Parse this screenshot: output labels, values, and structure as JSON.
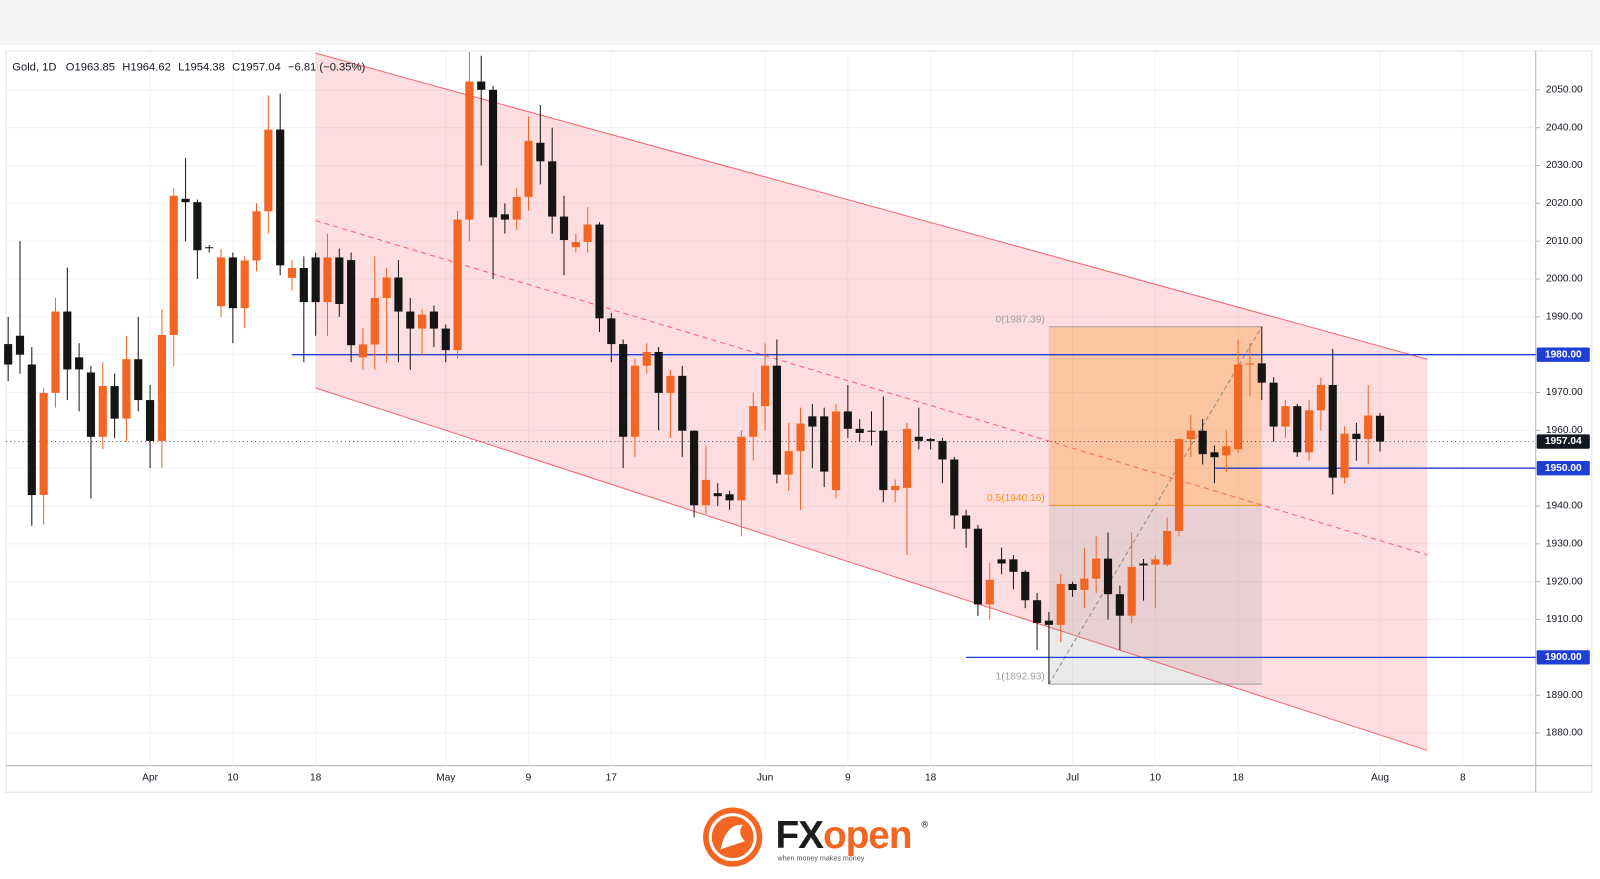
{
  "chart_data": {
    "type": "candlestick",
    "series": [
      {
        "name": "Gold, 1D",
        "up_color": "#f26522",
        "down_color": "#151515",
        "open": [
          1982.8,
          1985,
          1977.4,
          1942.9,
          1969.9,
          1991.4,
          1979.3,
          1975.3,
          1958.3,
          1971.7,
          1963.1,
          1978.8,
          1968,
          1957.2,
          1985.2,
          2021.2,
          2020.3,
          2008.4,
          1992.8,
          2005.7,
          1992.3,
          2004.9,
          2017.9,
          2039.5,
          2000.3,
          2002.9,
          2005.7,
          1993.9,
          2005.7,
          2005,
          1979.3,
          1982.7,
          1995,
          2000.4,
          1991.4,
          1986.9,
          1991.4,
          1986.9,
          1981.2,
          2015.7,
          2052.2,
          2050,
          2017.1,
          2015.7,
          2021.7,
          2036,
          2031.1,
          2016.5,
          2008.4,
          2009.8,
          2014.4,
          1989.6,
          1982.8,
          1958.3,
          1977.1,
          1980.7,
          1969.9,
          1974.4,
          1959.9,
          1940.2,
          1943.4,
          1943.1,
          1941.5,
          1958.3,
          1966.4,
          1977.1,
          1948.3,
          1954.5,
          1963.7,
          1963.7,
          1944.2,
          1965,
          1960.4,
          1959.9,
          1959.9,
          1944.2,
          1944.8,
          1958.3,
          1957.7,
          1957.2,
          1952.3,
          1937.5,
          1934,
          1914,
          1925.9,
          1925.9,
          1922.6,
          1915.1,
          1909.7,
          1908.6,
          1919.4,
          1917.8,
          1920.8,
          1926.1,
          1916.7,
          1911,
          1924.8,
          1924.5,
          1924.5,
          1933.4,
          1957.7,
          1959.9,
          1954.2,
          1953.4,
          1955,
          1977.4,
          1977.7,
          1972.6,
          1961,
          1966.4,
          1954.2,
          1965.3,
          1972,
          1947.5,
          1959.1,
          1957.7,
          1963.85,
          null,
          null,
          null,
          null,
          null,
          null,
          null
        ],
        "high": [
          1990,
          2010,
          1982,
          1971.2,
          1995,
          2003,
          1983,
          1977,
          1978,
          1975,
          1985,
          1990,
          1972,
          1992,
          2024,
          2032,
          2021,
          2009,
          2008,
          2007,
          2006,
          2020,
          2048.5,
          2049,
          2005,
          2006,
          2007,
          2012,
          2008,
          2007,
          1987,
          2006,
          2003,
          2005,
          1995,
          1992,
          1993,
          1988,
          2018,
          2060,
          2059,
          2051,
          2020,
          2024,
          2043,
          2046,
          2040,
          2022,
          2012,
          2019,
          2015,
          1991,
          1984,
          1979,
          1983,
          1982,
          1976,
          1977,
          1960,
          1956,
          1946,
          1944,
          1960,
          1970,
          1983,
          1984,
          1962,
          1966,
          1967,
          1966,
          1967,
          1972,
          1963,
          1965,
          1969,
          1947,
          1962,
          1966,
          1958,
          1958,
          1953,
          1939,
          1935,
          1925,
          1929,
          1927,
          1923,
          1917,
          1912,
          1922,
          1920,
          1929,
          1932,
          1933,
          1919,
          1933,
          1926,
          1927,
          1937,
          1958,
          1964,
          1963,
          1956,
          1960,
          1984,
          1983,
          1987.39,
          1974,
          1968,
          1967,
          1968,
          1974,
          1981.5,
          1961,
          1962,
          1972,
          1964.62,
          null,
          null,
          null,
          null,
          null,
          null,
          null
        ],
        "low": [
          1973,
          1975,
          1934.8,
          1935,
          1966,
          1968,
          1965,
          1942,
          1955,
          1958,
          1957,
          1965,
          1950,
          1950,
          1977,
          2010,
          2000,
          2007,
          1990,
          1983,
          1987,
          2002,
          2012,
          2001,
          1997,
          1978,
          1985,
          1985,
          1990,
          1978,
          1976,
          1976,
          1978,
          1978,
          1976,
          1980,
          1982,
          1978,
          1979,
          2010,
          2030,
          2000,
          2012,
          2013,
          2018,
          2025,
          2012,
          2001,
          2007,
          2007,
          1986,
          1978,
          1950,
          1953,
          1975,
          1960,
          1958,
          1953,
          1937,
          1938,
          1940,
          1939,
          1932,
          1952,
          1960,
          1946,
          1944,
          1939,
          1950,
          1945,
          1942,
          1958,
          1957,
          1956,
          1941,
          1941,
          1927,
          1955,
          1955,
          1946,
          1934,
          1929,
          1911,
          1910,
          1922,
          1918,
          1913,
          1902,
          1892.93,
          1904,
          1916,
          1913,
          1917,
          1910,
          1902,
          1909,
          1915,
          1913,
          1924,
          1932,
          1953,
          1951,
          1946,
          1949,
          1954,
          1969,
          1968,
          1957,
          1958,
          1953,
          1952,
          1960,
          1943,
          1946,
          1952,
          1951,
          1954.38,
          null,
          null,
          null,
          null,
          null,
          null,
          null
        ],
        "close": [
          1977.4,
          1980,
          1942.9,
          1969.9,
          1991.4,
          1976.1,
          1976.1,
          1958.3,
          1971.7,
          1963.1,
          1978.8,
          1968,
          1957.2,
          1985.2,
          2022,
          2020.3,
          2007.6,
          2008.2,
          2005.7,
          1992.3,
          2004.9,
          2017.9,
          2039.5,
          2003.6,
          2002.9,
          1993.9,
          1993.9,
          2005.7,
          1993.4,
          1982.5,
          1982.7,
          1995,
          2000.4,
          1991.4,
          1986.9,
          1990.6,
          1986.9,
          1981.2,
          2015.7,
          2052.2,
          2050,
          2016.3,
          2015.7,
          2021.7,
          2036.5,
          2031.1,
          2016.5,
          2010.3,
          2009.8,
          2014.4,
          1989.6,
          1982.8,
          1958.3,
          1977.1,
          1980.7,
          1969.9,
          1974.4,
          1959.9,
          1940.2,
          1946.9,
          1942.6,
          1941.5,
          1958.3,
          1966.4,
          1977.1,
          1948.3,
          1954.5,
          1961.8,
          1961,
          1949.1,
          1965,
          1960.4,
          1959.3,
          1959.8,
          1944.2,
          1945.3,
          1960.4,
          1957.2,
          1957.2,
          1952.3,
          1937.5,
          1934,
          1914,
          1920.5,
          1924.8,
          1922.6,
          1915.1,
          1909.1,
          1908.6,
          1919.4,
          1917.8,
          1920.8,
          1926.1,
          1916.7,
          1911,
          1923.9,
          1924.3,
          1925.9,
          1933.4,
          1957.7,
          1959.9,
          1953.7,
          1952.9,
          1955.8,
          1977.4,
          1977.7,
          1972.6,
          1961,
          1966.4,
          1954.2,
          1965.3,
          1972,
          1947.5,
          1959.1,
          1957.7,
          1963.9,
          1957.04,
          null,
          null,
          null,
          null,
          null,
          null,
          null
        ]
      }
    ],
    "header_values": [
      "O1963.85",
      "H1964.62",
      "L1954.38",
      "C1957.04",
      "−6.81 (−0.35%)"
    ],
    "categories": [
      null,
      null,
      null,
      null,
      null,
      null,
      null,
      null,
      null,
      null,
      null,
      null,
      "Apr",
      null,
      null,
      null,
      null,
      null,
      null,
      "10",
      null,
      null,
      null,
      null,
      null,
      null,
      "18",
      null,
      null,
      null,
      null,
      null,
      null,
      null,
      null,
      null,
      null,
      "May",
      null,
      null,
      null,
      null,
      null,
      null,
      "9",
      null,
      null,
      null,
      null,
      null,
      null,
      "17",
      null,
      null,
      null,
      null,
      null,
      null,
      null,
      null,
      null,
      null,
      null,
      null,
      "Jun",
      null,
      null,
      null,
      null,
      null,
      null,
      "9",
      null,
      null,
      null,
      null,
      null,
      null,
      "18",
      null,
      null,
      null,
      null,
      null,
      null,
      null,
      null,
      null,
      null,
      null,
      "Jul",
      null,
      null,
      null,
      null,
      null,
      null,
      "10",
      null,
      null,
      null,
      null,
      null,
      null,
      "18",
      null,
      null,
      null,
      null,
      null,
      null,
      null,
      null,
      null,
      null,
      null,
      "Aug",
      null,
      null,
      null,
      null,
      null,
      null,
      "8"
    ],
    "ylim": [
      1871.37,
      2060.25
    ],
    "yticks": [
      {
        "value": 1880,
        "label": "1880.00"
      },
      {
        "value": 1890,
        "label": "1890.00"
      },
      {
        "value": 1900,
        "label": "1900.00"
      },
      {
        "value": 1910,
        "label": "1910.00"
      },
      {
        "value": 1920,
        "label": "1920.00"
      },
      {
        "value": 1930,
        "label": "1930.00"
      },
      {
        "value": 1940,
        "label": "1940.00"
      },
      {
        "value": 1950,
        "label": "1950.00"
      },
      {
        "value": 1960,
        "label": "1960.00"
      },
      {
        "value": 1970,
        "label": "1970.00"
      },
      {
        "value": 1980,
        "label": "1980.00"
      },
      {
        "value": 1990,
        "label": "1990.00"
      },
      {
        "value": 2000,
        "label": "2000.00"
      },
      {
        "value": 2010,
        "label": "2010.00"
      },
      {
        "value": 2020,
        "label": "2020.00"
      },
      {
        "value": 2030,
        "label": "2030.00"
      },
      {
        "value": 2040,
        "label": "2040.00"
      },
      {
        "value": 2050,
        "label": "2050.00"
      }
    ],
    "grid": true,
    "channel": {
      "x": [
        26,
        120
      ],
      "upper": [
        2059.7,
        1978.8
      ],
      "lower": [
        1971.2,
        1875.4
      ],
      "color": "#f23645"
    },
    "levels": [
      {
        "value": 1980,
        "label": "1980.00",
        "from": 24,
        "color": "#1e3fd6"
      },
      {
        "value": 1950,
        "label": "1950.00",
        "from": 102,
        "color": "#1e3fd6"
      },
      {
        "value": 1900,
        "label": "1900.00",
        "from": 81,
        "color": "#1e3fd6"
      }
    ],
    "last_price": {
      "value": 1957.04,
      "label": "1957.04",
      "color": "#131722"
    },
    "fib": {
      "x": [
        88,
        106
      ],
      "levels": [
        {
          "value": 1987.39,
          "label": "0(1987.39)",
          "color": "#9e9e9e"
        },
        {
          "value": 1940.16,
          "label": "0.5(1940.16)",
          "color": "#f7931a"
        },
        {
          "value": 1892.93,
          "label": "1(1892.93)",
          "color": "#9e9e9e"
        }
      ]
    }
  },
  "footer": {
    "brand": [
      "FX",
      "open"
    ],
    "mark": "®",
    "tagline": "when money makes money"
  }
}
